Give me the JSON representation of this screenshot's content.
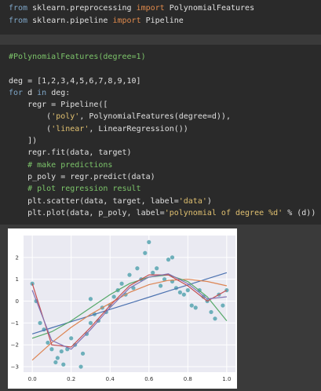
{
  "code_blocks": [
    {
      "lines": [
        [
          {
            "text": "from",
            "color": "#7fa7c9"
          },
          {
            "text": " sklearn.preprocessing ",
            "color": "#e0e0e0"
          },
          {
            "text": "import",
            "color": "#e08a4c"
          },
          {
            "text": " PolynomialFeatures",
            "color": "#e0e0e0"
          }
        ],
        [
          {
            "text": "from",
            "color": "#7fa7c9"
          },
          {
            "text": " sklearn.pipeline ",
            "color": "#e0e0e0"
          },
          {
            "text": "import",
            "color": "#e08a4c"
          },
          {
            "text": " Pipeline",
            "color": "#e0e0e0"
          }
        ]
      ]
    },
    {
      "lines": [
        [
          {
            "text": "#PolynomialFeatures(degree=1)",
            "color": "#7cc46a"
          }
        ],
        [],
        [
          {
            "text": "deg = [1,2,3,4,5,6,7,8,9,10]",
            "color": "#e0e0e0"
          }
        ],
        [
          {
            "text": "for",
            "color": "#7fa7c9"
          },
          {
            "text": " d ",
            "color": "#e0e0e0"
          },
          {
            "text": "in",
            "color": "#7fa7c9"
          },
          {
            "text": " deg:",
            "color": "#e0e0e0"
          }
        ],
        [
          {
            "text": "    regr = Pipeline([",
            "color": "#e0e0e0"
          }
        ],
        [
          {
            "text": "        (",
            "color": "#e0e0e0"
          },
          {
            "text": "'poly'",
            "color": "#e0c070"
          },
          {
            "text": ", PolynomialFeatures(degree=d)),",
            "color": "#e0e0e0"
          }
        ],
        [
          {
            "text": "        (",
            "color": "#e0e0e0"
          },
          {
            "text": "'linear'",
            "color": "#e0c070"
          },
          {
            "text": ", LinearRegression())",
            "color": "#e0e0e0"
          }
        ],
        [
          {
            "text": "    ])",
            "color": "#e0e0e0"
          }
        ],
        [
          {
            "text": "    regr.fit(data, target)",
            "color": "#e0e0e0"
          }
        ],
        [
          {
            "text": "    # make predictions",
            "color": "#7cc46a"
          }
        ],
        [
          {
            "text": "    p_poly = regr.predict(data)",
            "color": "#e0e0e0"
          }
        ],
        [
          {
            "text": "    # plot regression result",
            "color": "#7cc46a"
          }
        ],
        [
          {
            "text": "    plt.scatter(data, target, label=",
            "color": "#e0e0e0"
          },
          {
            "text": "'data'",
            "color": "#e0c070"
          },
          {
            "text": ")",
            "color": "#e0e0e0"
          }
        ],
        [
          {
            "text": "    plt.plot(data, p_poly, label=",
            "color": "#e0e0e0"
          },
          {
            "text": "'polynomial of degree %d'",
            "color": "#e0c070"
          },
          {
            "text": " % (d))",
            "color": "#e0e0e0"
          }
        ]
      ]
    }
  ],
  "plot": {
    "xlim": [
      -0.045,
      1.045
    ],
    "ylim": [
      -3.25,
      3.0
    ],
    "xticks": [
      {
        "value": 0,
        "label": "0.0"
      },
      {
        "value": 0.2,
        "label": "0.2"
      },
      {
        "value": 0.4,
        "label": "0.4"
      },
      {
        "value": 0.6,
        "label": "0.6"
      },
      {
        "value": 0.8,
        "label": "0.8"
      },
      {
        "value": 1,
        "label": "1.0"
      }
    ],
    "yticks": [
      {
        "value": -3,
        "label": "−3"
      },
      {
        "value": -2,
        "label": "−2"
      },
      {
        "value": -1,
        "label": "−1"
      },
      0,
      1,
      2
    ],
    "grid": true,
    "scatter": {
      "color": "#5fa8b4",
      "x": [
        0,
        0.02,
        0.04,
        0.06,
        0.08,
        0.1,
        0.12,
        0.13,
        0.15,
        0.16,
        0.18,
        0.2,
        0.22,
        0.25,
        0.26,
        0.28,
        0.3,
        0.32,
        0.34,
        0.36,
        0.38,
        0.4,
        0.42,
        0.44,
        0.46,
        0.48,
        0.5,
        0.52,
        0.54,
        0.56,
        0.58,
        0.6,
        0.62,
        0.64,
        0.66,
        0.68,
        0.7,
        0.72,
        0.74,
        0.76,
        0.78,
        0.8,
        0.82,
        0.84,
        0.86,
        0.88,
        0.9,
        0.92,
        0.94,
        0.96,
        0.98,
        1.0,
        0.72,
        0.3
      ],
      "y": [
        0.8,
        0,
        -1,
        -1.3,
        -1.9,
        -2.2,
        -2.8,
        -2.6,
        -2.3,
        -2.9,
        -2.2,
        -1.7,
        -2.0,
        -3.0,
        -2.4,
        -1.5,
        -1.0,
        -0.6,
        -0.9,
        -0.3,
        -0.5,
        -0.2,
        0.2,
        0.5,
        0.8,
        0.3,
        1.2,
        0.6,
        1.5,
        1.0,
        2.2,
        2.7,
        1.3,
        1.5,
        0.7,
        1.0,
        1.9,
        0.9,
        0.6,
        0.4,
        0.3,
        0.5,
        -0.2,
        -0.3,
        0.5,
        0.2,
        0.0,
        -0.5,
        -0.8,
        0.3,
        -0.2,
        0.5,
        2.0,
        0.1
      ]
    },
    "x": [
      0,
      0.1,
      0.2,
      0.3,
      0.4,
      0.5,
      0.6,
      0.7,
      0.8,
      0.9,
      1.0
    ],
    "series": [
      {
        "color": "#4c72b0",
        "values": [
          -1.5,
          -1.22,
          -0.94,
          -0.66,
          -0.38,
          -0.1,
          0.18,
          0.46,
          0.74,
          1.02,
          1.3
        ]
      },
      {
        "color": "#dd8452",
        "values": [
          -2.7,
          -1.9,
          -1.2,
          -0.6,
          -0.1,
          0.4,
          0.75,
          0.95,
          1.0,
          0.9,
          0.7
        ]
      },
      {
        "color": "#55a868",
        "values": [
          -1.7,
          -1.4,
          -0.9,
          -0.3,
          0.3,
          0.8,
          1.1,
          1.2,
          0.9,
          0.2,
          -0.9
        ]
      },
      {
        "color": "#c44e52",
        "values": [
          0.8,
          -2.0,
          -2.1,
          -1.2,
          -0.2,
          0.7,
          1.2,
          1.2,
          0.7,
          0.0,
          0.5
        ]
      },
      {
        "color": "#8172b3",
        "values": [
          0.5,
          -1.8,
          -2.2,
          -1.3,
          -0.3,
          0.6,
          1.1,
          1.25,
          0.8,
          0.1,
          0.2
        ]
      }
    ]
  }
}
